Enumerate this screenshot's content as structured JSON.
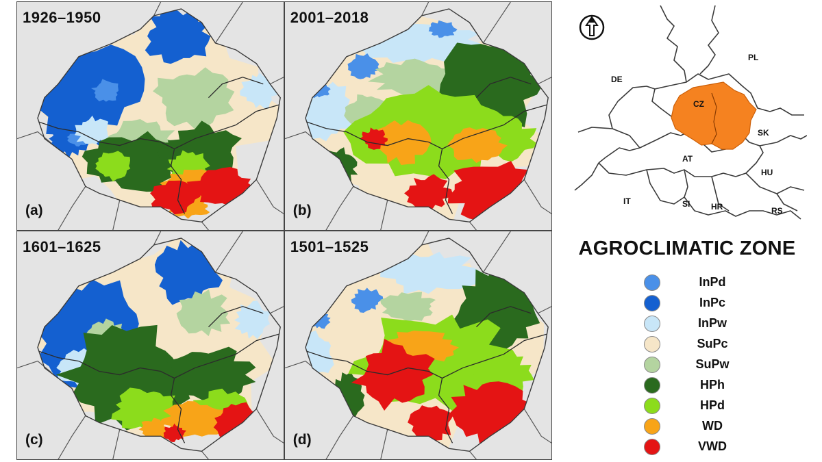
{
  "panels": [
    {
      "period": "1926–1950",
      "label": "(a)"
    },
    {
      "period": "2001–2018",
      "label": "(b)"
    },
    {
      "period": "1601–1625",
      "label": "(c)"
    },
    {
      "period": "1501–1525",
      "label": "(d)"
    }
  ],
  "inset": {
    "countries": [
      "PL",
      "DE",
      "CZ",
      "SK",
      "AT",
      "HU",
      "IT",
      "SI",
      "HR",
      "RS"
    ],
    "highlight_color": "#f58220"
  },
  "legend": {
    "title": "AGROCLIMATIC ZONE",
    "items": [
      {
        "label": "InPd",
        "color": "#4a90e8"
      },
      {
        "label": "InPc",
        "color": "#1460d0"
      },
      {
        "label": "InPw",
        "color": "#c8e6f8"
      },
      {
        "label": "SuPc",
        "color": "#f6e6c8"
      },
      {
        "label": "SuPw",
        "color": "#b4d4a0"
      },
      {
        "label": "HPh",
        "color": "#2a6a1e"
      },
      {
        "label": "HPd",
        "color": "#8cdc1c"
      },
      {
        "label": "WD",
        "color": "#f8a418"
      },
      {
        "label": "VWD",
        "color": "#e41414"
      }
    ]
  }
}
